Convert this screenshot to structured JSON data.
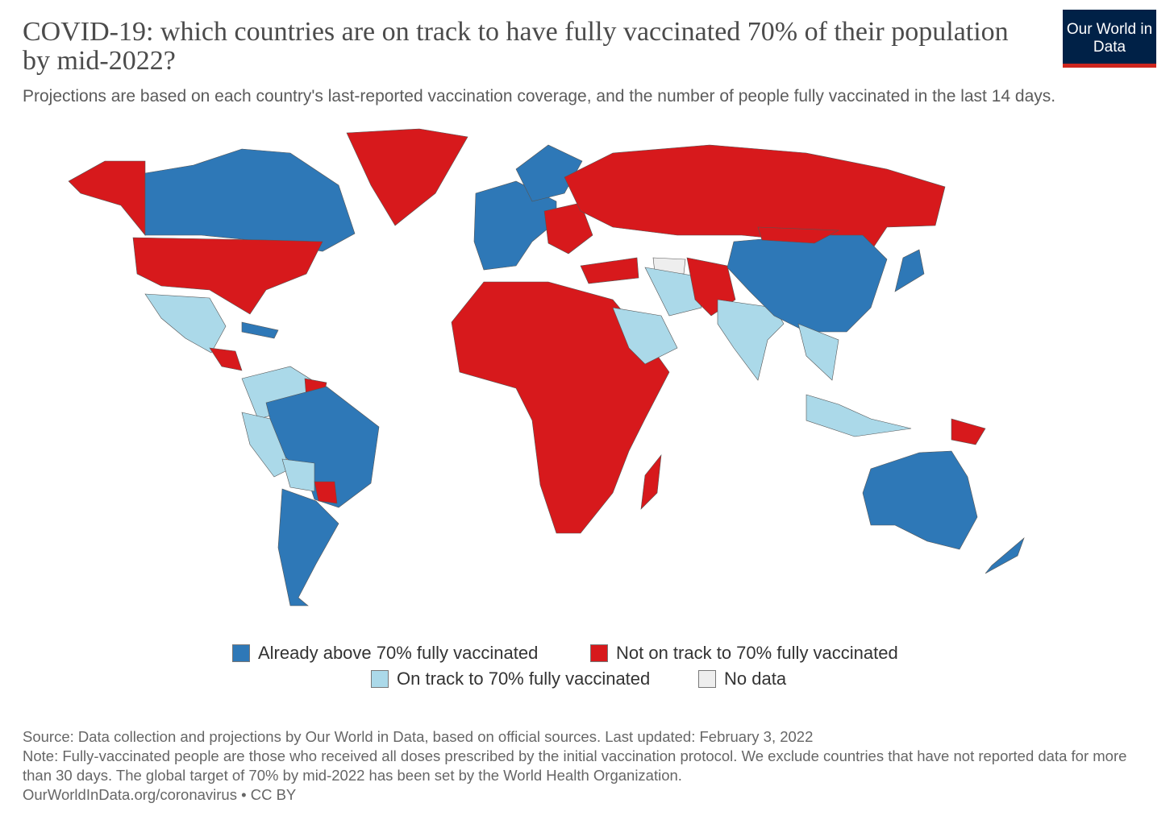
{
  "header": {
    "title": "COVID-19: which countries are on track to have fully vaccinated 70% of their population by mid-2022?",
    "subtitle": "Projections are based on each country's last-reported vaccination coverage, and the number of people fully vaccinated in the last 14 days.",
    "logo": "Our World in Data"
  },
  "legend": [
    {
      "label": "Already above 70% fully vaccinated",
      "color": "#2e78b7"
    },
    {
      "label": "Not on track to 70% fully vaccinated",
      "color": "#d7191c"
    },
    {
      "label": "On track to 70% fully vaccinated",
      "color": "#abd9e9"
    },
    {
      "label": "No data",
      "color": "#eeeeee"
    }
  ],
  "footer": {
    "source": "Source: Data collection and projections by Our World in Data, based on official sources. Last updated: February 3, 2022",
    "note": "Note: Fully-vaccinated people are those who received all doses prescribed by the initial vaccination protocol. We exclude countries that have not reported data for more than 30 days. The global target of 70% by mid-2022 has been set by the World Health Organization.",
    "link": "OurWorldInData.org/coronavirus • CC BY"
  }
}
